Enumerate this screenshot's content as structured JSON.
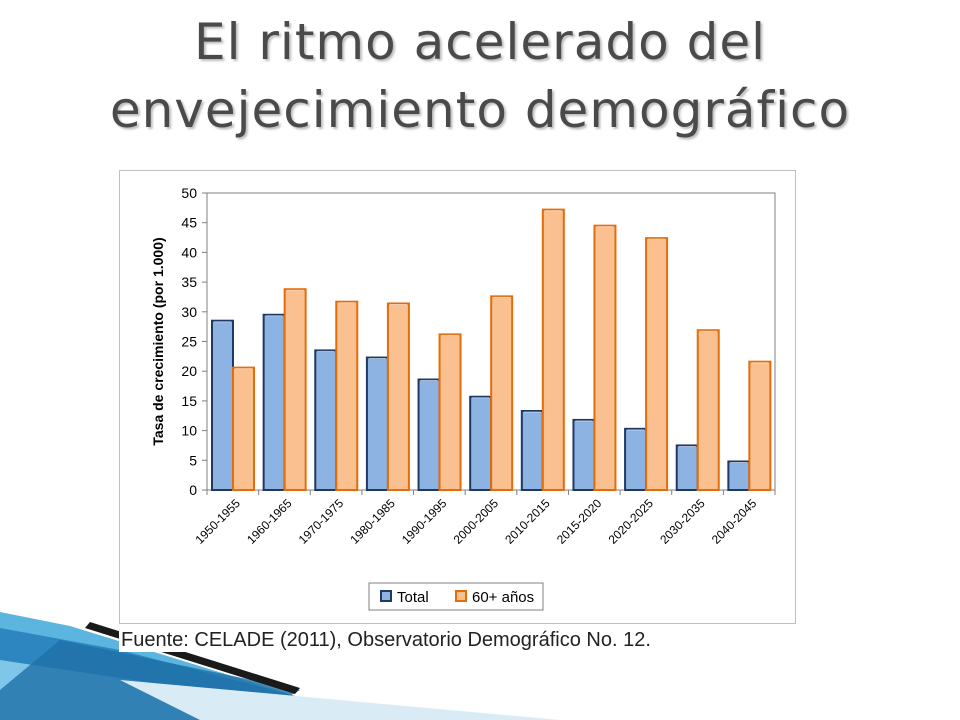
{
  "slide": {
    "title_line1": "El ritmo acelerado del",
    "title_line2": "envejecimiento demográfico",
    "source": "Fuente: CELADE (2011), Observatorio Demográfico No. 12."
  },
  "colors": {
    "total_fill": "#8db3e2",
    "total_stroke": "#1f3864",
    "old_fill": "#fac090",
    "old_stroke": "#e46c0a",
    "title_text": "#4a4a4a",
    "deco_blue": "#2e86c1",
    "deco_light": "#a9d8f0"
  },
  "chart_data": {
    "type": "bar",
    "title": "",
    "xlabel": "",
    "ylabel": "Tasa de crecimiento (por 1.000)",
    "ylim": [
      0,
      50
    ],
    "yticks": [
      0,
      5,
      10,
      15,
      20,
      25,
      30,
      35,
      40,
      45,
      50
    ],
    "grid": false,
    "legend_position": "bottom",
    "categories": [
      "1950-1955",
      "1960-1965",
      "1970-1975",
      "1980-1985",
      "1990-1995",
      "2000-2005",
      "2010-2015",
      "2015-2020",
      "2020-2025",
      "2030-2035",
      "2040-2045"
    ],
    "series": [
      {
        "name": "Total",
        "values": [
          28.5,
          29.5,
          23.5,
          22.3,
          18.6,
          15.7,
          13.3,
          11.8,
          10.3,
          7.5,
          4.8
        ]
      },
      {
        "name": "60+ años",
        "values": [
          20.6,
          33.8,
          31.7,
          31.4,
          26.2,
          32.6,
          47.2,
          44.5,
          42.4,
          26.9,
          21.6
        ]
      }
    ]
  }
}
